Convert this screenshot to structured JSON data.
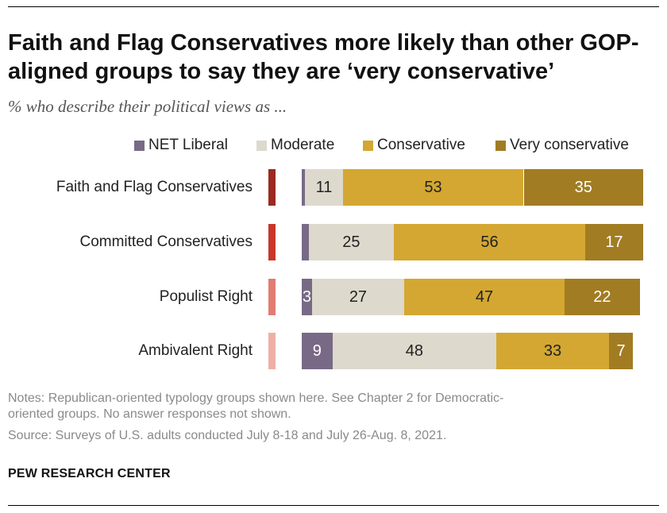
{
  "title": "Faith and Flag Conservatives more likely than other GOP-aligned groups to say they are ‘very conservative’",
  "subtitle": "% who describe their political views as ...",
  "colors": {
    "net_liberal": "#786a86",
    "moderate": "#ddd9cd",
    "conservative": "#d3a731",
    "very_conservative": "#a17c23"
  },
  "chart_data": {
    "type": "bar",
    "orientation": "horizontal",
    "stacked": true,
    "categories": [
      "Faith and Flag Conservatives",
      "Committed Conservatives",
      "Populist Right",
      "Ambivalent Right"
    ],
    "category_accent_colors": [
      "#9b2a20",
      "#c9362a",
      "#e07d72",
      "#eeb0a6"
    ],
    "series": [
      {
        "name": "NET Liberal",
        "values": [
          1,
          2,
          3,
          9
        ],
        "labels": [
          "",
          "",
          "3",
          "9"
        ]
      },
      {
        "name": "Moderate",
        "values": [
          11,
          25,
          27,
          48
        ],
        "labels": [
          "11",
          "25",
          "27",
          "48"
        ]
      },
      {
        "name": "Conservative",
        "values": [
          53,
          56,
          47,
          33
        ],
        "labels": [
          "53",
          "56",
          "47",
          "33"
        ]
      },
      {
        "name": "Very conservative",
        "values": [
          35,
          17,
          22,
          7
        ],
        "labels": [
          "35",
          "17",
          "22",
          "7"
        ]
      }
    ],
    "legend_position": "top-right",
    "grid": false
  },
  "notes": {
    "line1": "Notes: Republican-oriented typology groups shown here. See Chapter 2 for Democratic-",
    "line2": "oriented groups. No answer responses not shown.",
    "source": "Source: Surveys of U.S. adults conducted July 8-18 and July 26-Aug. 8, 2021."
  },
  "org": "PEW RESEARCH CENTER"
}
